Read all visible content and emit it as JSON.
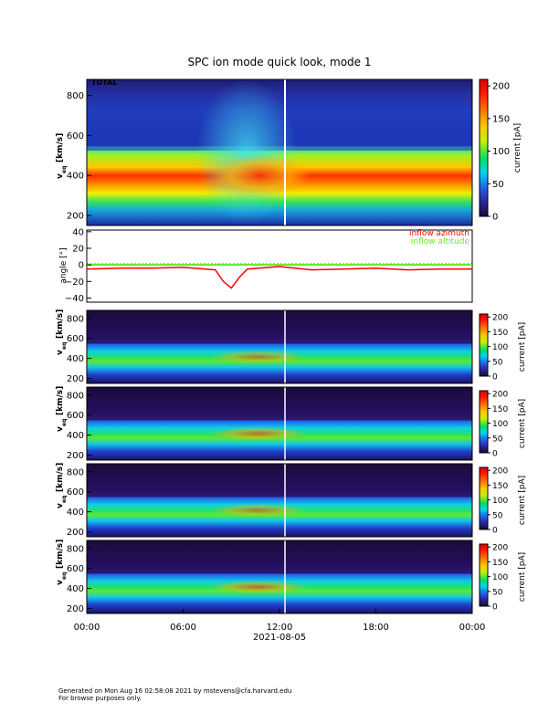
{
  "title": "SPC ion mode quick look, mode 1",
  "footer": {
    "line1": "Generated on Mon Aug 16 02:58:08 2021 by mstevens@cfa.harvard.edu",
    "line2": "For browse purposes only."
  },
  "colors": {
    "spectrogram_low": "#1a0838",
    "inflow_azimuth": "#ff0000",
    "inflow_altitude": "#66ee22"
  },
  "chart_data": [
    {
      "type": "heatmap",
      "panel_label": "TOTAL",
      "ylabel": "v_eq [km/s]",
      "ylabel_main": "v",
      "ylabel_sub": "eq",
      "ylabel_unit": "[km/s]",
      "yticks": [
        "200",
        "400",
        "600",
        "800"
      ],
      "ylim": [
        150,
        880
      ],
      "colorbar_label": "current [pA]",
      "colorbar_ticks": [
        "0",
        "50",
        "100",
        "150",
        "200"
      ],
      "clim": [
        0,
        210
      ],
      "peak_velocity_km_s": 360,
      "peak_current_pA": 180
    },
    {
      "type": "line",
      "ylabel": "angle [°]",
      "yticks": [
        "40",
        "20",
        "0",
        "−20",
        "−40"
      ],
      "ylim": [
        -45,
        42
      ],
      "series": [
        {
          "name": "inflow azimuth",
          "color": "#ff0000",
          "x_hours": [
            0,
            2,
            4,
            6,
            8,
            8.5,
            9,
            9.5,
            10,
            12,
            14,
            16,
            18,
            20,
            22,
            24
          ],
          "values": [
            -5,
            -4,
            -4,
            -3,
            -6,
            -20,
            -28,
            -15,
            -5,
            -2,
            -6,
            -5,
            -4,
            -6,
            -5,
            -5
          ]
        },
        {
          "name": "inflow altitude",
          "color": "#66ee22",
          "x_hours": [
            0,
            6,
            12,
            18,
            24
          ],
          "values": [
            0,
            0,
            0,
            0,
            0
          ]
        }
      ]
    },
    {
      "type": "heatmap",
      "ylabel": "v_eq [km/s]",
      "ylabel_main": "v",
      "ylabel_sub": "eq",
      "ylabel_unit": "[km/s]",
      "yticks": [
        "200",
        "400",
        "600",
        "800"
      ],
      "ylim": [
        150,
        880
      ],
      "colorbar_label": "current [pA]",
      "colorbar_ticks": [
        "0",
        "50",
        "100",
        "150",
        "200"
      ],
      "clim": [
        0,
        210
      ]
    },
    {
      "type": "heatmap",
      "ylabel": "v_eq [km/s]",
      "ylabel_main": "v",
      "ylabel_sub": "eq",
      "ylabel_unit": "[km/s]",
      "yticks": [
        "200",
        "400",
        "600",
        "800"
      ],
      "ylim": [
        150,
        880
      ],
      "colorbar_label": "current [pA]",
      "colorbar_ticks": [
        "0",
        "50",
        "100",
        "150",
        "200"
      ],
      "clim": [
        0,
        210
      ]
    },
    {
      "type": "heatmap",
      "ylabel": "v_eq [km/s]",
      "ylabel_main": "v",
      "ylabel_sub": "eq",
      "ylabel_unit": "[km/s]",
      "yticks": [
        "200",
        "400",
        "600",
        "800"
      ],
      "ylim": [
        150,
        880
      ],
      "colorbar_label": "current [pA]",
      "colorbar_ticks": [
        "0",
        "50",
        "100",
        "150",
        "200"
      ],
      "clim": [
        0,
        210
      ]
    },
    {
      "type": "heatmap",
      "ylabel": "v_eq [km/s]",
      "ylabel_main": "v",
      "ylabel_sub": "eq",
      "ylabel_unit": "[km/s]",
      "yticks": [
        "200",
        "400",
        "600",
        "800"
      ],
      "ylim": [
        150,
        880
      ],
      "colorbar_label": "current [pA]",
      "colorbar_ticks": [
        "0",
        "50",
        "100",
        "150",
        "200"
      ],
      "clim": [
        0,
        210
      ]
    }
  ],
  "xaxis": {
    "tick_labels": [
      "00:00",
      "06:00",
      "12:00",
      "18:00",
      "00:00"
    ],
    "date_label": "2021-08-05",
    "marker_time": "12:45"
  }
}
